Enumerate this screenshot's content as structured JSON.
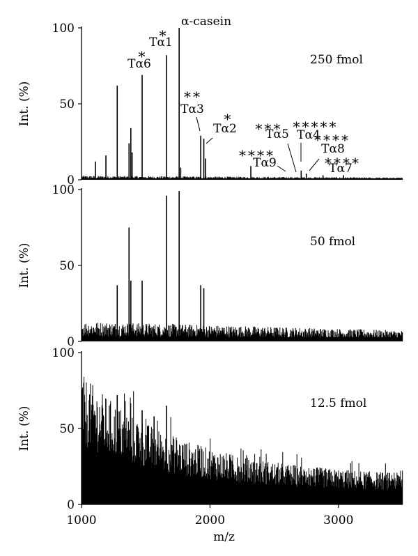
{
  "chart_data": [
    {
      "type": "line",
      "title": "",
      "annotation": "250 fmol",
      "xlabel": "",
      "ylabel": "Int. (%)",
      "xlim": [
        1000,
        3500
      ],
      "ylim": [
        0,
        100
      ],
      "yticks": [
        0,
        50,
        100
      ],
      "noise_level": 2,
      "peaks": [
        {
          "x": 1108,
          "y": 12
        },
        {
          "x": 1190,
          "y": 16
        },
        {
          "x": 1278,
          "y": 62
        },
        {
          "x": 1370,
          "y": 24
        },
        {
          "x": 1384,
          "y": 34
        },
        {
          "x": 1394,
          "y": 18
        },
        {
          "x": 1472,
          "y": 69
        },
        {
          "x": 1662,
          "y": 82
        },
        {
          "x": 1760,
          "y": 100
        },
        {
          "x": 1772,
          "y": 8
        },
        {
          "x": 1928,
          "y": 29
        },
        {
          "x": 1952,
          "y": 27
        },
        {
          "x": 1965,
          "y": 14
        },
        {
          "x": 2318,
          "y": 9
        },
        {
          "x": 2710,
          "y": 6
        },
        {
          "x": 2750,
          "y": 4
        },
        {
          "x": 2880,
          "y": 3
        },
        {
          "x": 3040,
          "y": 3
        }
      ],
      "peak_labels": [
        {
          "label": "Tα6",
          "stars": "*",
          "x": 1472
        },
        {
          "label": "Tα1",
          "stars": "*",
          "x": 1662
        },
        {
          "label": "α-casein",
          "stars": "",
          "x": 1760
        },
        {
          "label": "Tα3",
          "stars": "**",
          "x": 1928
        },
        {
          "label": "Tα2",
          "stars": "*",
          "x": 1952
        },
        {
          "label": "Tα5",
          "stars": "***",
          "x": 2660
        },
        {
          "label": "Tα4",
          "stars": "*****",
          "x": 2720
        },
        {
          "label": "Tα9",
          "stars": "****",
          "x": 2545
        },
        {
          "label": "Tα8",
          "stars": "****",
          "x": 2760
        },
        {
          "label": "Tα7",
          "stars": "****",
          "x": 2990
        }
      ]
    },
    {
      "type": "line",
      "title": "",
      "annotation": "50 fmol",
      "xlabel": "",
      "ylabel": "Int. (%)",
      "xlim": [
        1000,
        3500
      ],
      "ylim": [
        0,
        100
      ],
      "yticks": [
        0,
        50,
        100
      ],
      "noise_level": 10,
      "peaks": [
        {
          "x": 1278,
          "y": 37
        },
        {
          "x": 1370,
          "y": 75
        },
        {
          "x": 1384,
          "y": 40
        },
        {
          "x": 1472,
          "y": 40
        },
        {
          "x": 1662,
          "y": 96
        },
        {
          "x": 1760,
          "y": 99
        },
        {
          "x": 1928,
          "y": 37
        },
        {
          "x": 1952,
          "y": 35
        }
      ]
    },
    {
      "type": "line",
      "title": "",
      "annotation": "12.5 fmol",
      "xlabel": "m/z",
      "ylabel": "Int. (%)",
      "xlim": [
        1000,
        3500
      ],
      "ylim": [
        0,
        100
      ],
      "yticks": [
        0,
        50,
        100
      ],
      "xticks": [
        1000,
        2000,
        3000
      ],
      "noise_level": 88,
      "peaks": [
        {
          "x": 1278,
          "y": 72
        },
        {
          "x": 1472,
          "y": 62
        },
        {
          "x": 1565,
          "y": 58
        },
        {
          "x": 1662,
          "y": 65
        }
      ]
    }
  ]
}
